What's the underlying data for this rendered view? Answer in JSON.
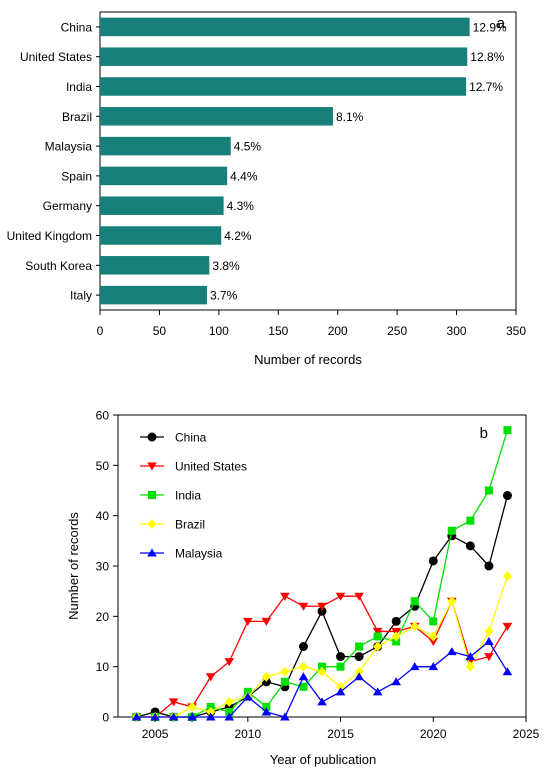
{
  "chart_data": [
    {
      "type": "bar",
      "orientation": "horizontal",
      "panel_label": "a",
      "xlabel": "Number of records",
      "ylabel": "",
      "xlim": [
        0,
        350
      ],
      "xticks": [
        0,
        50,
        100,
        150,
        200,
        250,
        300,
        350
      ],
      "grid": false,
      "categories": [
        "China",
        "United States",
        "India",
        "Brazil",
        "Malaysia",
        "Spain",
        "Germany",
        "United Kingdom",
        "South Korea",
        "Italy"
      ],
      "values": [
        311,
        309,
        308,
        196,
        110,
        107,
        104,
        102,
        92,
        90
      ],
      "data_labels": [
        "12.9%",
        "12.8%",
        "12.7%",
        "8.1%",
        "4.5%",
        "4.4%",
        "4.3%",
        "4.2%",
        "3.8%",
        "3.7%"
      ],
      "bar_color": "#18807a"
    },
    {
      "type": "line",
      "panel_label": "b",
      "xlabel": "Year of publication",
      "ylabel": "Number of records",
      "xlim": [
        2003,
        2025
      ],
      "ylim": [
        0,
        60
      ],
      "xticks": [
        2005,
        2010,
        2015,
        2020,
        2025
      ],
      "yticks": [
        0,
        10,
        20,
        30,
        40,
        50,
        60
      ],
      "grid": false,
      "legend_position": "top-left",
      "x": [
        2004,
        2005,
        2006,
        2007,
        2008,
        2009,
        2010,
        2011,
        2012,
        2013,
        2014,
        2015,
        2016,
        2017,
        2018,
        2019,
        2020,
        2021,
        2022,
        2023,
        2024
      ],
      "series": [
        {
          "name": "China",
          "color": "#000000",
          "marker": "circle",
          "values": [
            0,
            1,
            0,
            0,
            1,
            2,
            4,
            7,
            6,
            14,
            21,
            12,
            12,
            14,
            19,
            22,
            31,
            36,
            34,
            30,
            44
          ]
        },
        {
          "name": "United States",
          "color": "#ff0000",
          "marker": "triangle-down",
          "values": [
            0,
            0,
            3,
            2,
            8,
            11,
            19,
            19,
            24,
            22,
            22,
            24,
            24,
            17,
            17,
            18,
            15,
            23,
            11,
            12,
            18
          ]
        },
        {
          "name": "India",
          "color": "#00e000",
          "marker": "square",
          "values": [
            0,
            0,
            0,
            0,
            2,
            1,
            5,
            2,
            7,
            6,
            10,
            10,
            14,
            16,
            15,
            23,
            19,
            37,
            39,
            45,
            57
          ]
        },
        {
          "name": "Brazil",
          "color": "#ffff00",
          "marker": "diamond",
          "values": [
            0,
            0,
            0,
            2,
            1,
            3,
            4,
            8,
            9,
            10,
            9,
            6,
            9,
            14,
            16,
            18,
            16,
            23,
            10,
            17,
            28
          ]
        },
        {
          "name": "Malaysia",
          "color": "#0000ff",
          "marker": "triangle-up",
          "values": [
            0,
            0,
            0,
            0,
            0,
            0,
            4,
            1,
            0,
            8,
            3,
            5,
            8,
            5,
            7,
            10,
            10,
            13,
            12,
            15,
            9
          ]
        }
      ]
    }
  ]
}
